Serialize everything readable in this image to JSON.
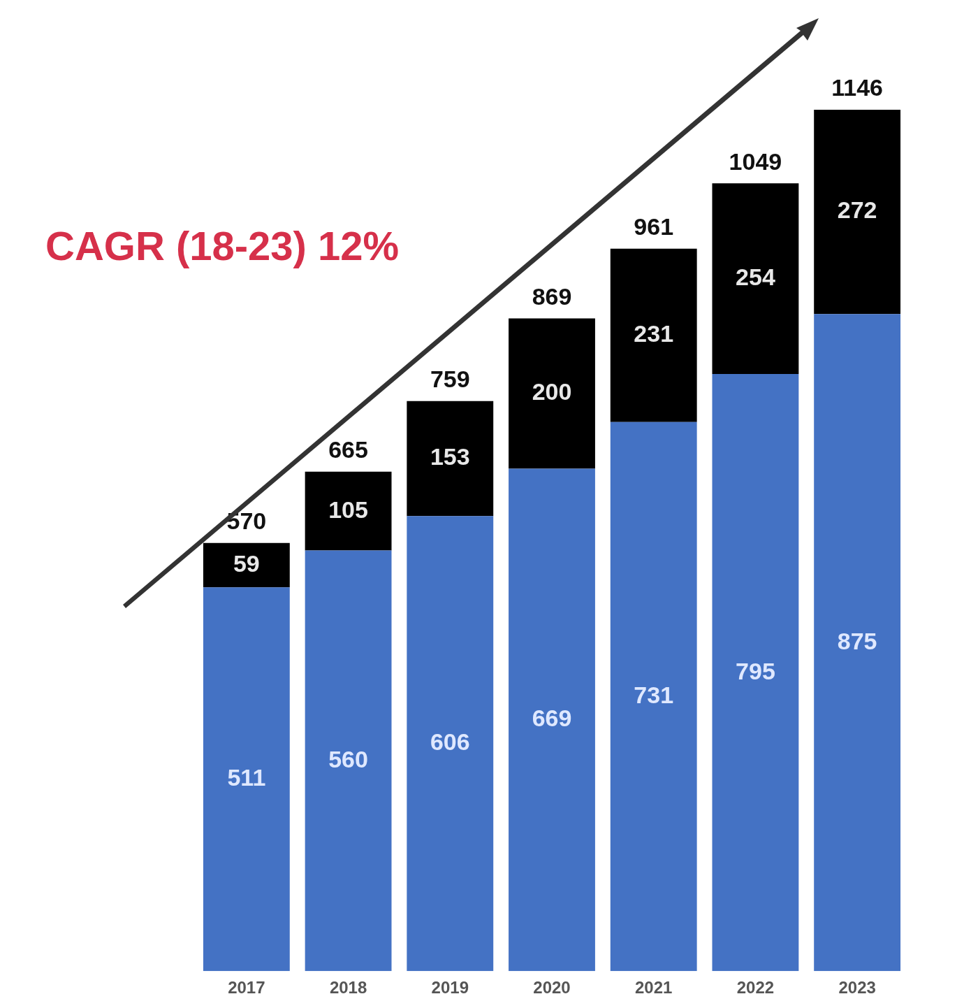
{
  "chart_data": {
    "type": "bar",
    "stacked": true,
    "categories": [
      "2017",
      "2018",
      "2019",
      "2020",
      "2021",
      "2022",
      "2023"
    ],
    "series": [
      {
        "color": "#4472c4",
        "values": [
          511,
          560,
          606,
          669,
          731,
          795,
          875
        ]
      },
      {
        "color": "#000000",
        "values": [
          59,
          105,
          153,
          200,
          231,
          254,
          272
        ]
      }
    ],
    "data_labels": true,
    "totals": [
      "570",
      "665",
      "759",
      "869",
      "961",
      "1049",
      "1146"
    ],
    "annotations": [
      "CAGR (18-23) 12%"
    ],
    "tick_labels": "x",
    "grid": false,
    "legend": false
  }
}
